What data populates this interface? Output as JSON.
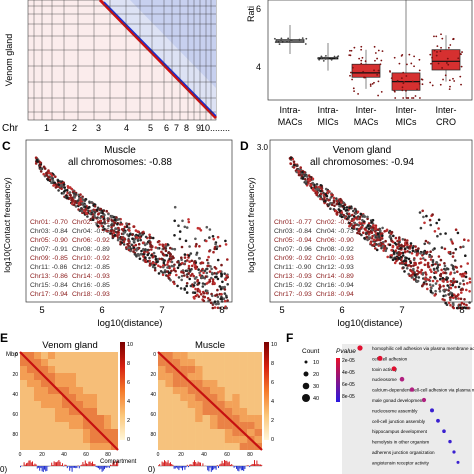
{
  "panel_a": {
    "ylabel": "Venom gland",
    "chr_label": "Chr",
    "chr_ticks": [
      "1",
      "2",
      "3",
      "4",
      "5",
      "6",
      "7",
      "8",
      "9",
      "10........"
    ]
  },
  "panel_b": {
    "ylabel": "Rati",
    "yticks": [
      "6",
      "4"
    ],
    "categories": [
      "Intra-\nMACs",
      "Intra-\nMICs",
      "Inter-\nMACs",
      "Inter-\nMICs",
      "Inter-\nCRO"
    ],
    "chart_data": {
      "type": "box",
      "categories": [
        "Intra-MACs",
        "Intra-MICs",
        "Inter-MACs",
        "Inter-MICs",
        "Inter-CRO"
      ],
      "series": [
        {
          "values_summary": [
            {
              "median": 5.0,
              "q1": 4.95,
              "q3": 5.05
            },
            {
              "median": 4.4,
              "q1": 4.38,
              "q3": 4.43
            },
            {
              "median": 3.9,
              "q1": 3.75,
              "q3": 4.2
            },
            {
              "median": 3.6,
              "q1": 3.3,
              "q3": 3.9
            },
            {
              "median": 4.3,
              "q1": 4.0,
              "q3": 4.7
            }
          ]
        }
      ],
      "colors": {
        "box": "#cc2222",
        "points": "#555555"
      }
    }
  },
  "panel_c": {
    "letter": "C",
    "title": "Muscle",
    "subtitle": "all chromosomes: -0.88",
    "ylabel": "log10(Contact frequency)",
    "xlabel": "log10(distance)",
    "yticks": [
      "3",
      "2",
      "1",
      "0",
      "-1",
      "-2",
      "-3",
      "-4"
    ],
    "xticks": [
      "5",
      "6",
      "7",
      "8"
    ],
    "chr_rows": [
      [
        "Chr01: -0.70",
        "Chr02: -0.72"
      ],
      [
        "Chr03: -0.84",
        "Chr04: -0.75"
      ],
      [
        "Chr05: -0.90",
        "Chr06: -0.92"
      ],
      [
        "Chr07: -0.91",
        "Chr08: -0.89"
      ],
      [
        "Chr09: -0.85",
        "Chr10: -0.92"
      ],
      [
        "Chr11: -0.86",
        "Chr12: -0.85"
      ],
      [
        "Chr13: -0.86",
        "Chr14: -0.93"
      ],
      [
        "Chr15: -0.84",
        "Chr16: -0.85"
      ],
      [
        "Chr17: -0.94",
        "Chr18: -0.93"
      ]
    ]
  },
  "panel_d": {
    "letter": "D",
    "title": "Venom gland",
    "subtitle": "all chromosomes: -0.94",
    "ylabel": "log10(Contact frequency)",
    "xlabel": "log10(distance)",
    "yticks": [
      "3.0",
      "2.5",
      "2.0",
      "1.5",
      "1.0",
      "0.5",
      "0.0",
      "-0.5"
    ],
    "xticks": [
      "5",
      "6",
      "7",
      "8"
    ],
    "chr_rows": [
      [
        "Chr01: -0.77",
        "Chr02: -0.76"
      ],
      [
        "Chr03: -0.84",
        "Chr04: -0.73"
      ],
      [
        "Chr05: -0.94",
        "Chr06: -0.90"
      ],
      [
        "Chr07: -0.96",
        "Chr08: -0.92"
      ],
      [
        "Chr09: -0.92",
        "Chr10: -0.93"
      ],
      [
        "Chr11: -0.90",
        "Chr12: -0.93"
      ],
      [
        "Chr13: -0.93",
        "Chr14: -0.89"
      ],
      [
        "Chr15: -0.92",
        "Chr16: -0.94"
      ],
      [
        "Chr17: -0.93",
        "Chr18: -0.94"
      ]
    ]
  },
  "panel_e": {
    "letter": "E",
    "mb_label": "Mbp",
    "left_title": "Venom gland",
    "right_title": "Muscle",
    "yticks": [
      "0",
      "20",
      "40",
      "60",
      "80"
    ],
    "xticks": [
      "0",
      "20",
      "40",
      "60",
      "80"
    ],
    "colorbar_ticks": [
      "10",
      "8",
      "6",
      "4",
      "2",
      "0"
    ],
    "compartment": "Compartment",
    "bottom_left": "0)",
    "bottom_right": "0)"
  },
  "panel_f": {
    "letter": "F",
    "count_label": "Count",
    "pvalue_label": "Pvalue",
    "count_ticks": [
      "10",
      "20",
      "30",
      "40"
    ],
    "pvalue_ticks": [
      "2e-05",
      "4e-05",
      "6e-05",
      "8e-05"
    ],
    "terms": [
      "homophilic cell adhesion via plasma membrane adhesion molecules",
      "cell-cell adhesion",
      "toxin activity",
      "nucleosome",
      "calcium-dependent cell-cell adhesion via plasma membrane cell adhesion molecules",
      "male gonad development",
      "nucleosome assembly",
      "cell-cell junction assembly",
      "hippocampus development",
      "hemolysis in other organism",
      "adherens junction organization",
      "angiotensin receptor activity"
    ]
  }
}
